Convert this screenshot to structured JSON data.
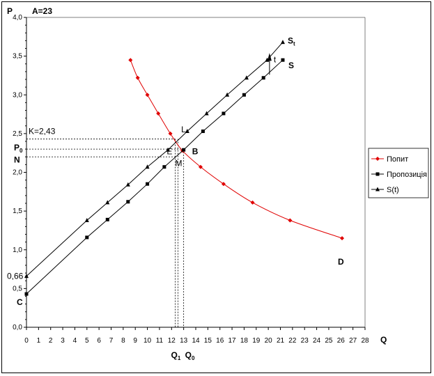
{
  "chart_data": {
    "type": "line",
    "title": "A=23",
    "xlabel": "Q",
    "ylabel": "P",
    "xlim": [
      0,
      28
    ],
    "ylim": [
      0,
      4.0
    ],
    "xticks": [
      "0",
      "1",
      "2",
      "3",
      "4",
      "5",
      "6",
      "7",
      "8",
      "9",
      "10",
      "11",
      "12",
      "13",
      "14",
      "15",
      "16",
      "17",
      "18",
      "19",
      "20",
      "21",
      "22",
      "23",
      "24",
      "25",
      "26",
      "27",
      "28"
    ],
    "yticks": [
      "0,0",
      "0,5",
      "1,0",
      "1,5",
      "2,0",
      "2,5",
      "3,0",
      "3,5",
      "4,0"
    ],
    "grid": false,
    "legend_position": "right",
    "series": [
      {
        "name": "Попит",
        "color": "#e00000",
        "marker": "diamond",
        "curve_label": "D",
        "points": [
          [
            8.6,
            3.45
          ],
          [
            9.2,
            3.22
          ],
          [
            10.0,
            3.0
          ],
          [
            10.9,
            2.76
          ],
          [
            11.9,
            2.5
          ],
          [
            12.9,
            2.28
          ],
          [
            14.4,
            2.07
          ],
          [
            16.3,
            1.85
          ],
          [
            18.7,
            1.61
          ],
          [
            21.8,
            1.38
          ],
          [
            26.1,
            1.15
          ]
        ]
      },
      {
        "name": "Пропозиція",
        "color": "#000000",
        "marker": "square",
        "curve_label": "S",
        "points": [
          [
            0,
            0.43
          ],
          [
            5.0,
            1.16
          ],
          [
            6.7,
            1.39
          ],
          [
            8.4,
            1.62
          ],
          [
            10.0,
            1.85
          ],
          [
            11.4,
            2.07
          ],
          [
            13.0,
            2.29
          ],
          [
            14.6,
            2.53
          ],
          [
            16.3,
            2.76
          ],
          [
            18.0,
            3.0
          ],
          [
            19.6,
            3.22
          ],
          [
            21.2,
            3.45
          ]
        ]
      },
      {
        "name": "S(t)",
        "color": "#000000",
        "marker": "triangle",
        "curve_label": "St",
        "points": [
          [
            0,
            0.66
          ],
          [
            5.0,
            1.38
          ],
          [
            6.7,
            1.61
          ],
          [
            8.4,
            1.84
          ],
          [
            10.0,
            2.07
          ],
          [
            11.7,
            2.29
          ],
          [
            13.3,
            2.53
          ],
          [
            14.9,
            2.76
          ],
          [
            16.6,
            3.0
          ],
          [
            18.2,
            3.22
          ],
          [
            19.9,
            3.45
          ],
          [
            21.2,
            3.68
          ]
        ]
      }
    ],
    "annotations": {
      "k_label": "K=2,43",
      "p0_label": "P",
      "p0_sub": "0",
      "n_label": "N",
      "c_label": "C",
      "intercept_label": "0,66",
      "l_label": "L",
      "e_label": "E",
      "b_label": "B",
      "m_label": "M",
      "t_label": "t",
      "q1_label": "Q",
      "q1_sub": "1",
      "q0_label": "Q",
      "q0_sub": "0",
      "k_value": 2.43,
      "p0_value": 2.3,
      "n_value": 2.2,
      "q1_value": 12.3,
      "q0_value": 13.0
    }
  }
}
